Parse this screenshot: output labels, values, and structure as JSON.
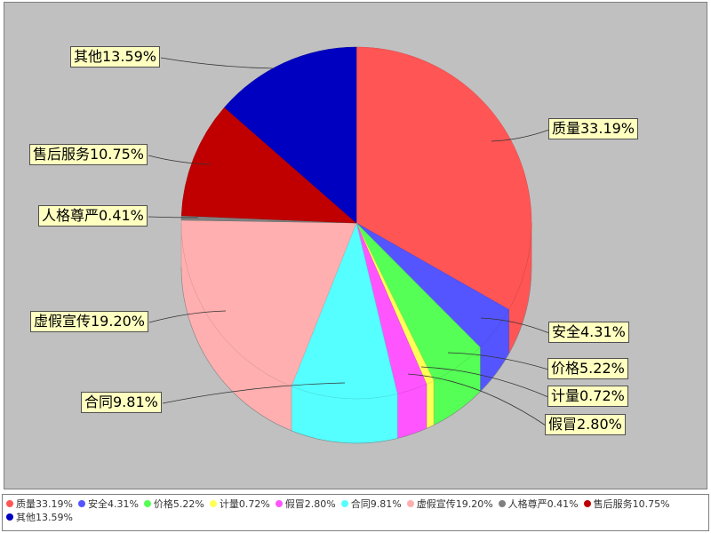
{
  "chart_data": {
    "type": "pie",
    "slices": [
      {
        "label": "质量",
        "value": 33.19,
        "display": "质量33.19%",
        "color": "#ff5555"
      },
      {
        "label": "安全",
        "value": 4.31,
        "display": "安全4.31%",
        "color": "#5555ff"
      },
      {
        "label": "价格",
        "value": 5.22,
        "display": "价格5.22%",
        "color": "#55ff55"
      },
      {
        "label": "计量",
        "value": 0.72,
        "display": "计量0.72%",
        "color": "#ffff55"
      },
      {
        "label": "假冒",
        "value": 2.8,
        "display": "假冒2.80%",
        "color": "#ff55ff"
      },
      {
        "label": "合同",
        "value": 9.81,
        "display": "合同9.81%",
        "color": "#55ffff"
      },
      {
        "label": "虚假宣传",
        "value": 19.2,
        "display": "虚假宣传19.20%",
        "color": "#ffafaf"
      },
      {
        "label": "人格尊严",
        "value": 0.41,
        "display": "人格尊严0.41%",
        "color": "#808080"
      },
      {
        "label": "售后服务",
        "value": 10.75,
        "display": "售后服务10.75%",
        "color": "#c00000"
      },
      {
        "label": "其他",
        "value": 13.59,
        "display": "其他13.59%",
        "color": "#0000c0"
      }
    ],
    "legend_position": "bottom",
    "style": "3d"
  }
}
